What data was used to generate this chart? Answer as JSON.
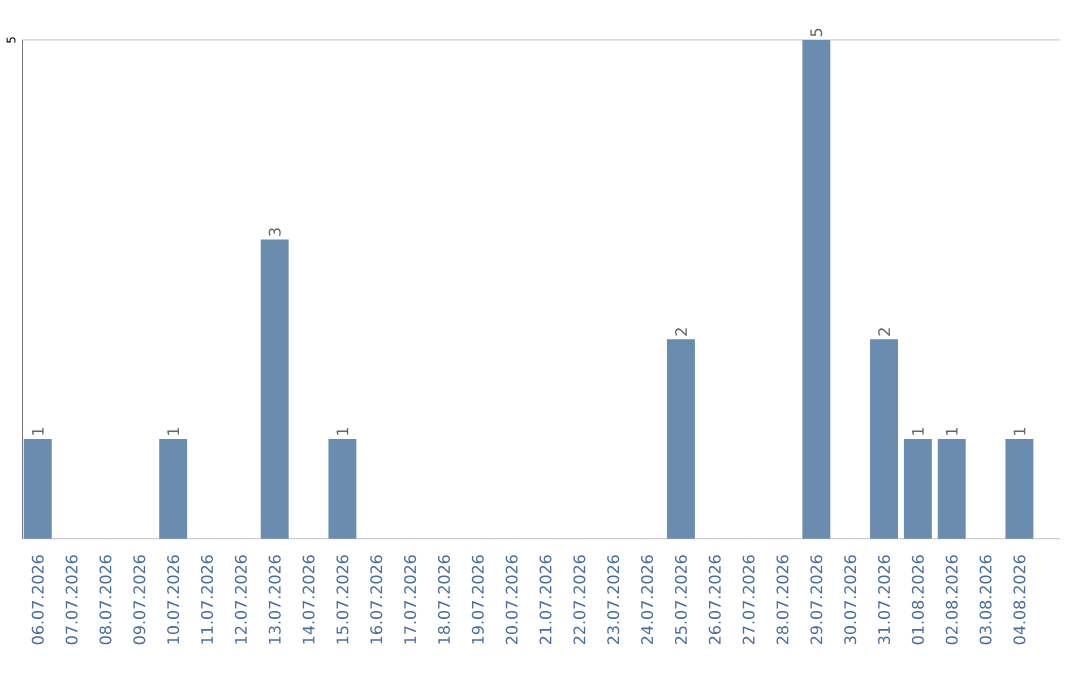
{
  "chart_data": {
    "type": "bar",
    "categories": [
      "06.07.2026",
      "07.07.2026",
      "08.07.2026",
      "09.07.2026",
      "10.07.2026",
      "11.07.2026",
      "12.07.2026",
      "13.07.2026",
      "14.07.2026",
      "15.07.2026",
      "16.07.2026",
      "17.07.2026",
      "18.07.2026",
      "19.07.2026",
      "20.07.2026",
      "21.07.2026",
      "22.07.2026",
      "23.07.2026",
      "24.07.2026",
      "25.07.2026",
      "26.07.2026",
      "27.07.2026",
      "28.07.2026",
      "29.07.2026",
      "30.07.2026",
      "31.07.2026",
      "01.08.2026",
      "02.08.2026",
      "03.08.2026",
      "04.08.2026"
    ],
    "values": [
      1,
      0,
      0,
      0,
      1,
      0,
      0,
      3,
      0,
      1,
      0,
      0,
      0,
      0,
      0,
      0,
      0,
      0,
      0,
      2,
      0,
      0,
      0,
      5,
      0,
      2,
      1,
      1,
      0,
      1
    ],
    "value_labels": [
      "1",
      null,
      null,
      null,
      "1",
      null,
      null,
      "3",
      null,
      "1",
      null,
      null,
      null,
      null,
      null,
      null,
      null,
      null,
      null,
      "2",
      null,
      null,
      null,
      "5",
      null,
      "2",
      "1",
      "1",
      null,
      "1"
    ],
    "color": "#6a8caf",
    "ylim": [
      0,
      5
    ],
    "yticks": [
      5
    ]
  }
}
